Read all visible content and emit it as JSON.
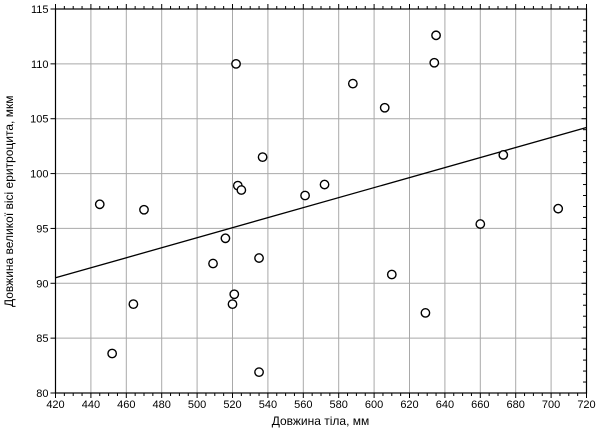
{
  "chart_data": {
    "type": "scatter",
    "title": "",
    "xlabel": "Довжина тіла, мм",
    "ylabel": "Довжина великої вісі еритроцита, мкм",
    "xlim": [
      420,
      720
    ],
    "ylim": [
      80,
      115
    ],
    "x_ticks": [
      420,
      440,
      460,
      480,
      500,
      520,
      540,
      560,
      580,
      600,
      620,
      640,
      660,
      680,
      700,
      720
    ],
    "y_ticks": [
      80,
      85,
      90,
      95,
      100,
      105,
      110,
      115
    ],
    "x_minor_step": 5,
    "y_minor_step": 1,
    "grid": true,
    "legend_position": "none",
    "marker": "open-circle",
    "points": [
      [
        445,
        97.2
      ],
      [
        452,
        83.6
      ],
      [
        464,
        88.1
      ],
      [
        470,
        96.7
      ],
      [
        509,
        91.8
      ],
      [
        516,
        94.1
      ],
      [
        520,
        88.1
      ],
      [
        521,
        89.0
      ],
      [
        522,
        110.0
      ],
      [
        523,
        98.9
      ],
      [
        525,
        98.5
      ],
      [
        535,
        81.9
      ],
      [
        535,
        92.3
      ],
      [
        537,
        101.5
      ],
      [
        561,
        98.0
      ],
      [
        572,
        99.0
      ],
      [
        588,
        108.2
      ],
      [
        606,
        106.0
      ],
      [
        610,
        90.8
      ],
      [
        629,
        87.3
      ],
      [
        634,
        110.1
      ],
      [
        635,
        112.6
      ],
      [
        660,
        95.4
      ],
      [
        673,
        101.7
      ],
      [
        704,
        96.8
      ]
    ],
    "trend_line": {
      "x1": 420,
      "y1": 90.5,
      "x2": 720,
      "y2": 104.2
    },
    "colors": {
      "frame": "#000000",
      "grid": "#a9a9a9",
      "point_stroke": "#000000",
      "point_fill": "#ffffff",
      "trend": "#000000",
      "text": "#000000",
      "background": "#ffffff"
    }
  }
}
